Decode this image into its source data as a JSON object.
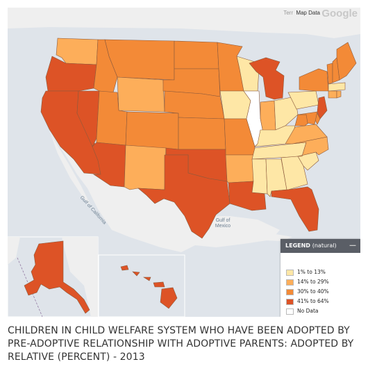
{
  "map": {
    "terms_faded": "Terr",
    "data_label": "Map Data",
    "google_logo": "Google",
    "water_labels": {
      "gulf_california": "Gulf of California",
      "gulf_mexico": "Gulf of\nMexico"
    },
    "legend": {
      "title": "LEGEND",
      "subtitle": "(natural)",
      "collapse_icon": "minus-icon",
      "items": [
        {
          "label": "1% to 13%",
          "color": "#fee7a6"
        },
        {
          "label": "14% to 29%",
          "color": "#fdae5a"
        },
        {
          "label": "30% to 40%",
          "color": "#f38a37"
        },
        {
          "label": "41% to 64%",
          "color": "#dd5326"
        },
        {
          "label": "No Data",
          "color": "#ffffff"
        }
      ]
    },
    "states": [
      {
        "name": "WA",
        "bin": 2
      },
      {
        "name": "OR",
        "bin": 4
      },
      {
        "name": "CA",
        "bin": 4
      },
      {
        "name": "NV",
        "bin": 4
      },
      {
        "name": "ID",
        "bin": 3
      },
      {
        "name": "MT",
        "bin": 3
      },
      {
        "name": "WY",
        "bin": 2
      },
      {
        "name": "UT",
        "bin": 3
      },
      {
        "name": "AZ",
        "bin": 4
      },
      {
        "name": "CO",
        "bin": 3
      },
      {
        "name": "NM",
        "bin": 2
      },
      {
        "name": "ND",
        "bin": 3
      },
      {
        "name": "SD",
        "bin": 3
      },
      {
        "name": "NE",
        "bin": 3
      },
      {
        "name": "KS",
        "bin": 3
      },
      {
        "name": "OK",
        "bin": 4
      },
      {
        "name": "TX",
        "bin": 4
      },
      {
        "name": "MN",
        "bin": 3
      },
      {
        "name": "IA",
        "bin": 1
      },
      {
        "name": "MO",
        "bin": 3
      },
      {
        "name": "AR",
        "bin": 2
      },
      {
        "name": "LA",
        "bin": 4
      },
      {
        "name": "WI",
        "bin": 1
      },
      {
        "name": "IL",
        "bin": 0
      },
      {
        "name": "MI",
        "bin": 4
      },
      {
        "name": "IN",
        "bin": 2
      },
      {
        "name": "OH",
        "bin": 1
      },
      {
        "name": "KY",
        "bin": 1
      },
      {
        "name": "TN",
        "bin": 1
      },
      {
        "name": "MS",
        "bin": 1
      },
      {
        "name": "AL",
        "bin": 1
      },
      {
        "name": "GA",
        "bin": 1
      },
      {
        "name": "FL",
        "bin": 4
      },
      {
        "name": "SC",
        "bin": 1
      },
      {
        "name": "NC",
        "bin": 2
      },
      {
        "name": "VA",
        "bin": 2
      },
      {
        "name": "WV",
        "bin": 3
      },
      {
        "name": "PA",
        "bin": 1
      },
      {
        "name": "NY",
        "bin": 3
      },
      {
        "name": "VT",
        "bin": 3
      },
      {
        "name": "NH",
        "bin": 3
      },
      {
        "name": "ME",
        "bin": 3
      },
      {
        "name": "MA",
        "bin": 1
      },
      {
        "name": "CT",
        "bin": 2
      },
      {
        "name": "RI",
        "bin": 2
      },
      {
        "name": "NJ",
        "bin": 4
      },
      {
        "name": "DE",
        "bin": 3
      },
      {
        "name": "MD",
        "bin": 3
      },
      {
        "name": "AK",
        "bin": 4
      },
      {
        "name": "HI",
        "bin": 4
      }
    ]
  },
  "title": "CHILDREN IN CHILD WELFARE SYSTEM WHO HAVE BEEN ADOPTED BY PRE-ADOPTIVE RELATIONSHIP WITH ADOPTIVE PARENTS: ADOPTED BY RELATIVE (PERCENT) - 2013"
}
